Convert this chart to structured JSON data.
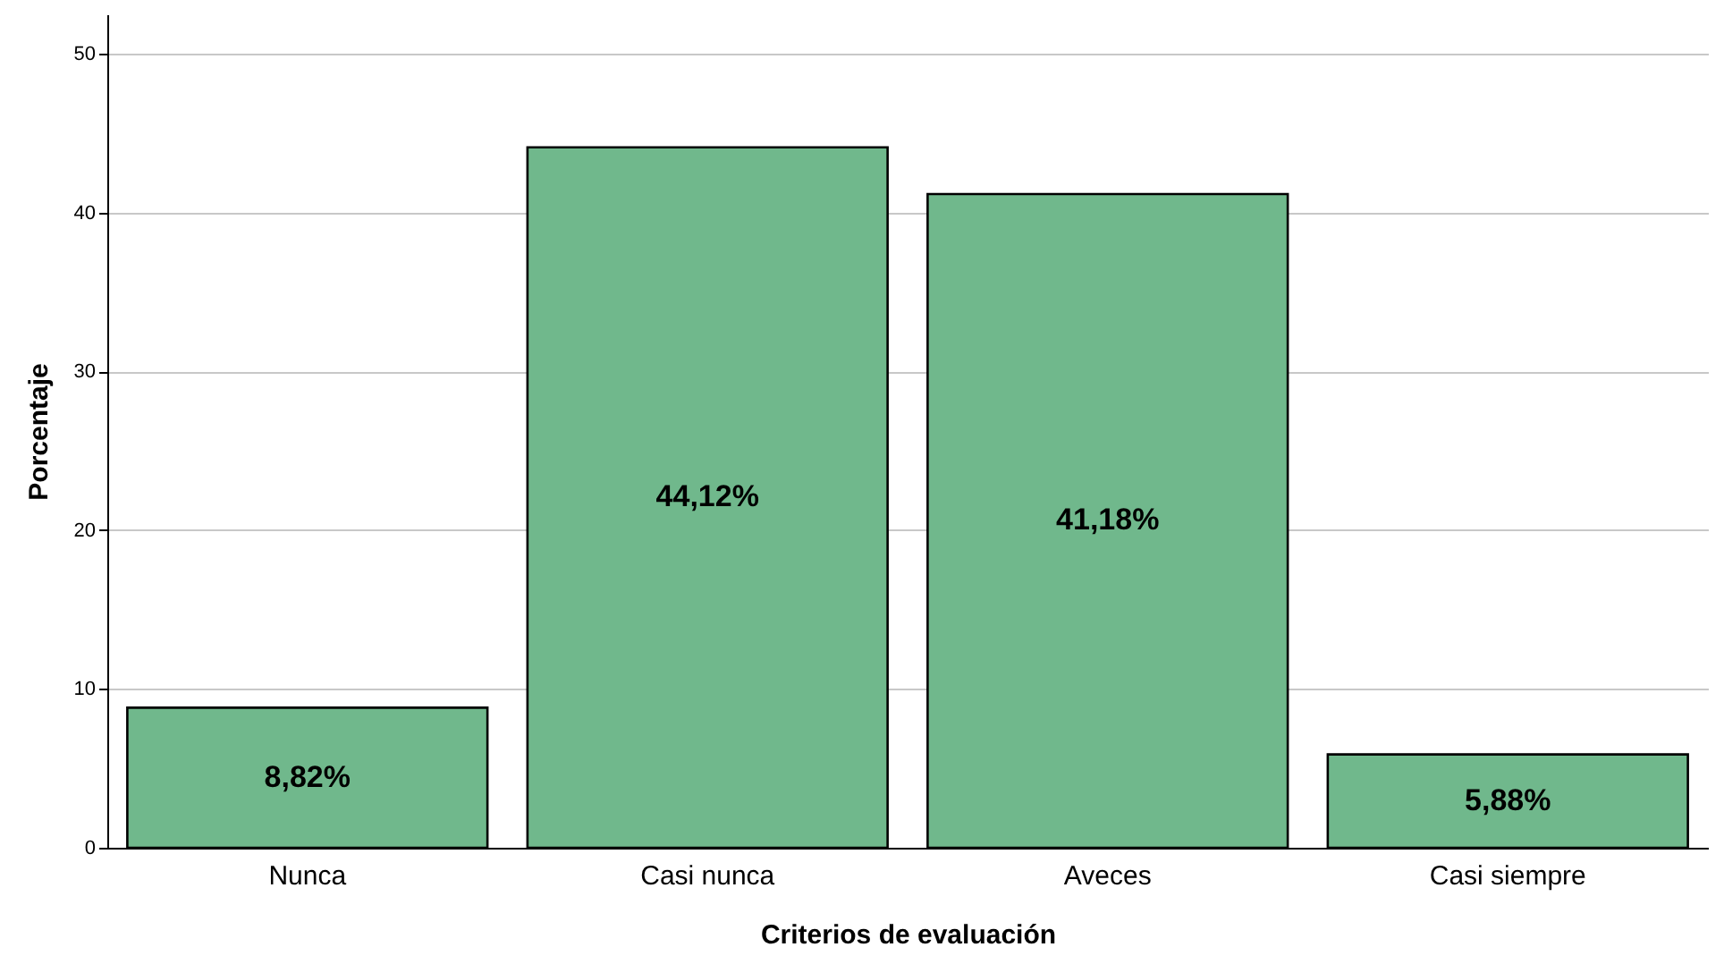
{
  "chart_data": {
    "type": "bar",
    "xlabel": "Criterios de evaluación",
    "ylabel": "Porcentaje",
    "categories": [
      "Nunca",
      "Casi nunca",
      "Aveces",
      "Casi siempre"
    ],
    "values": [
      8.82,
      44.12,
      41.18,
      5.88
    ],
    "value_labels": [
      "8,82%",
      "44,12%",
      "41,18%",
      "5,88%"
    ],
    "color": "#70b88c",
    "ylim": [
      0,
      52.5
    ],
    "yticks": [
      0,
      10,
      20,
      30,
      40,
      50
    ],
    "grid": "y"
  }
}
